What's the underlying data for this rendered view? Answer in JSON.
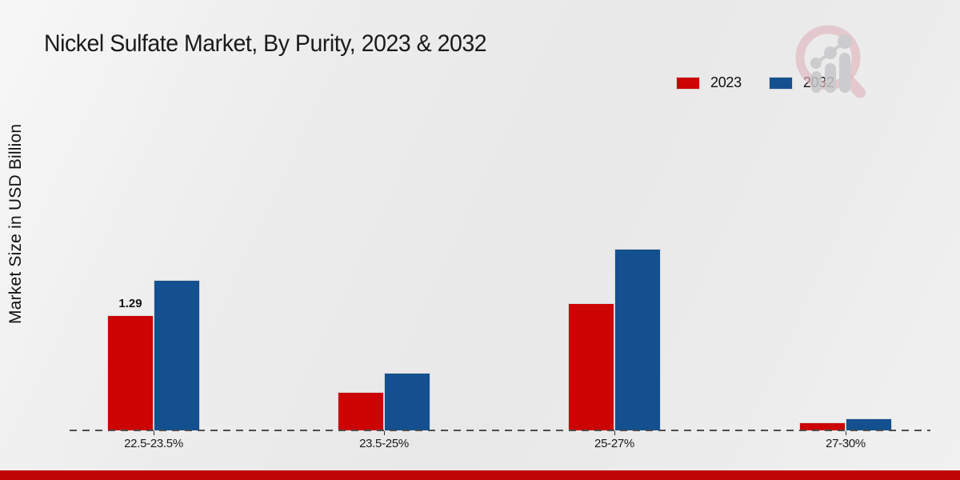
{
  "title": "Nickel Sulfate Market, By Purity, 2023 & 2032",
  "y_axis_label": "Market Size in USD Billion",
  "footer": {
    "accent_color": "#c00505"
  },
  "watermark_icon": "magnifier-growth-chart-logo",
  "chart_data": {
    "type": "bar",
    "title": "Nickel Sulfate Market, By Purity, 2023 & 2032",
    "xlabel": "",
    "ylabel": "Market Size in USD Billion",
    "categories": [
      "22.5-23.5%",
      "23.5-25%",
      "25-27%",
      "27-30%"
    ],
    "series": [
      {
        "name": "2023",
        "color": "#cc0404",
        "values": [
          1.29,
          0.43,
          1.42,
          0.09
        ]
      },
      {
        "name": "2032",
        "color": "#14508f",
        "values": [
          1.68,
          0.64,
          2.03,
          0.13
        ]
      }
    ],
    "ylim": [
      0,
      2.2
    ],
    "grid": false,
    "axis_style": "dashed-baseline-only",
    "legend_position": "top-right",
    "annotations": [
      {
        "series": "2023",
        "category_index": 0,
        "text": "1.29"
      }
    ]
  }
}
